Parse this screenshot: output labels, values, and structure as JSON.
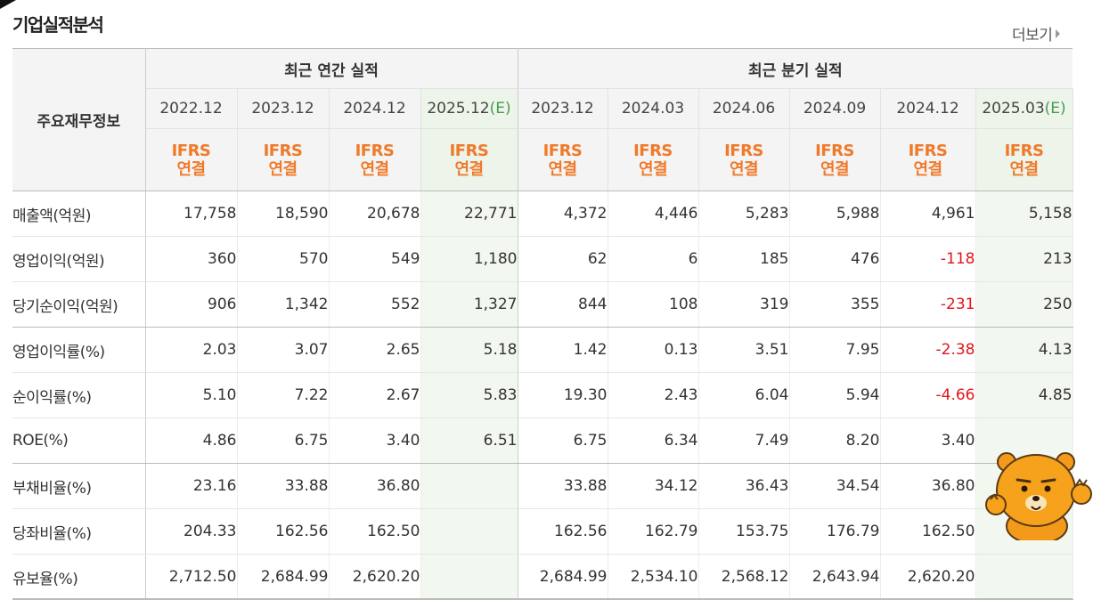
{
  "section": {
    "title": "기업실적분석",
    "more_label": "더보기"
  },
  "table": {
    "row_header": "주요재무정보",
    "annual_header": "최근 연간 실적",
    "quarter_header": "최근 분기 실적",
    "periods": [
      {
        "date": "2022.12",
        "suffix": "",
        "type": "annual",
        "estimate": false
      },
      {
        "date": "2023.12",
        "suffix": "",
        "type": "annual",
        "estimate": false
      },
      {
        "date": "2024.12",
        "suffix": "",
        "type": "annual",
        "estimate": false
      },
      {
        "date": "2025.12",
        "suffix": "(E)",
        "type": "annual",
        "estimate": true
      },
      {
        "date": "2023.12",
        "suffix": "",
        "type": "quarter",
        "estimate": false
      },
      {
        "date": "2024.03",
        "suffix": "",
        "type": "quarter",
        "estimate": false
      },
      {
        "date": "2024.06",
        "suffix": "",
        "type": "quarter",
        "estimate": false
      },
      {
        "date": "2024.09",
        "suffix": "",
        "type": "quarter",
        "estimate": false
      },
      {
        "date": "2024.12",
        "suffix": "",
        "type": "quarter",
        "estimate": false
      },
      {
        "date": "2025.03",
        "suffix": "(E)",
        "type": "quarter",
        "estimate": true
      }
    ],
    "ifrs_line1": "IFRS",
    "ifrs_line2": "연결",
    "rows": [
      {
        "label": "매출액(억원)",
        "values": [
          "17,758",
          "18,590",
          "20,678",
          "22,771",
          "4,372",
          "4,446",
          "5,283",
          "5,988",
          "4,961",
          "5,158"
        ]
      },
      {
        "label": "영업이익(억원)",
        "values": [
          "360",
          "570",
          "549",
          "1,180",
          "62",
          "6",
          "185",
          "476",
          "-118",
          "213"
        ]
      },
      {
        "label": "당기순이익(억원)",
        "values": [
          "906",
          "1,342",
          "552",
          "1,327",
          "844",
          "108",
          "319",
          "355",
          "-231",
          "250"
        ],
        "group_end": true
      },
      {
        "label": "영업이익률(%)",
        "values": [
          "2.03",
          "3.07",
          "2.65",
          "5.18",
          "1.42",
          "0.13",
          "3.51",
          "7.95",
          "-2.38",
          "4.13"
        ]
      },
      {
        "label": "순이익률(%)",
        "values": [
          "5.10",
          "7.22",
          "2.67",
          "5.83",
          "19.30",
          "2.43",
          "6.04",
          "5.94",
          "-4.66",
          "4.85"
        ]
      },
      {
        "label": "ROE(%)",
        "values": [
          "4.86",
          "6.75",
          "3.40",
          "6.51",
          "6.75",
          "6.34",
          "7.49",
          "8.20",
          "3.40",
          ""
        ],
        "group_end": true
      },
      {
        "label": "부채비율(%)",
        "values": [
          "23.16",
          "33.88",
          "36.80",
          "",
          "33.88",
          "34.12",
          "36.43",
          "34.54",
          "36.80",
          ""
        ]
      },
      {
        "label": "당좌비율(%)",
        "values": [
          "204.33",
          "162.56",
          "162.50",
          "",
          "162.56",
          "162.79",
          "153.75",
          "176.79",
          "162.50",
          ""
        ]
      },
      {
        "label": "유보율(%)",
        "values": [
          "2,712.50",
          "2,684.99",
          "2,620.20",
          "",
          "2,684.99",
          "2,534.10",
          "2,568.12",
          "2,643.94",
          "2,620.20",
          ""
        ],
        "group_end": true
      }
    ]
  },
  "colors": {
    "ifrs": "#f07a2a",
    "estimate_header_bg": "#edf4ea",
    "estimate_cell_bg": "#f2f8f0",
    "negative": "#e4141a",
    "estimate_suffix": "#4a9a52"
  },
  "mascot": {
    "icon": "ryan-bear-icon"
  }
}
